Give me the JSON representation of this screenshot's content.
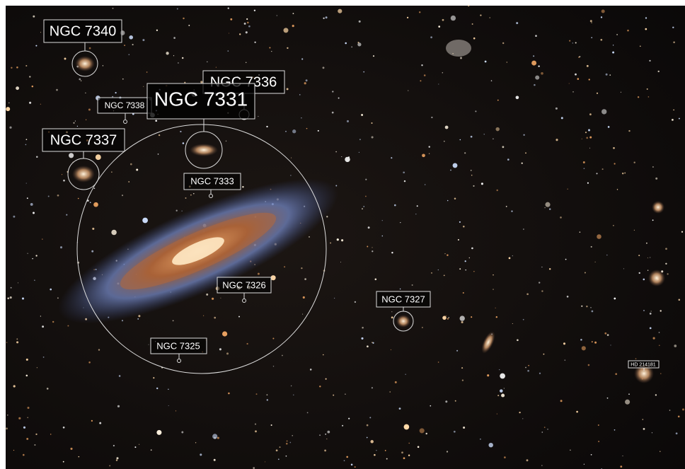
{
  "annotations": [
    {
      "label": "NGC 7340"
    },
    {
      "label": "NGC 7336"
    },
    {
      "label": "NGC 7338"
    },
    {
      "label": "NGC 7331"
    },
    {
      "label": "NGC 7337"
    },
    {
      "label": "NGC 7333"
    },
    {
      "label": "NGC 7326"
    },
    {
      "label": "NGC 7327"
    },
    {
      "label": "NGC 7325"
    },
    {
      "label": "HD 214181"
    }
  ]
}
